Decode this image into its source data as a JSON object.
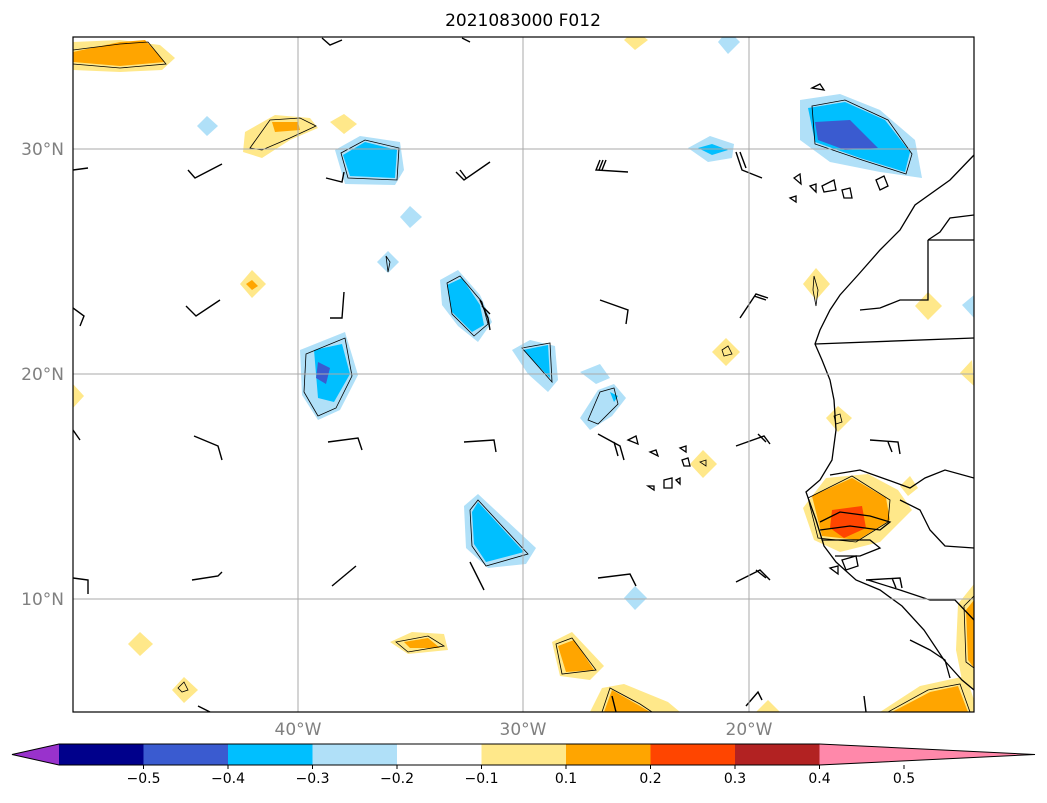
{
  "title": "2021083000 F012",
  "grid": {
    "lon_labels": [
      "40°W",
      "30°W",
      "20°W"
    ],
    "lat_labels": [
      "30°N",
      "20°N",
      "10°N"
    ],
    "lon_values": [
      -40,
      -30,
      -20
    ],
    "lat_values": [
      30,
      20,
      10
    ]
  },
  "extent": {
    "lon": [
      -50,
      -10
    ],
    "lat": [
      5,
      35
    ]
  },
  "colorbar": {
    "ticks": [
      "−0.5",
      "−0.4",
      "−0.3",
      "−0.2",
      "−0.1",
      "0.1",
      "0.2",
      "0.3",
      "0.4",
      "0.5"
    ],
    "colors": [
      "#9932cc",
      "#00008b",
      "#3a5bd0",
      "#00bfff",
      "#b0e0f8",
      "#ffffff",
      "#ffe88a",
      "#ffa500",
      "#ff4500",
      "#b22222",
      "#ff88aa"
    ]
  },
  "colors": {
    "very_light_blue": "#b0e0f8",
    "light_blue": "#00bfff",
    "medium_blue": "#3a5bd0",
    "yellow": "#ffe88a",
    "orange": "#ffa500",
    "red_orange": "#ff4500"
  }
}
